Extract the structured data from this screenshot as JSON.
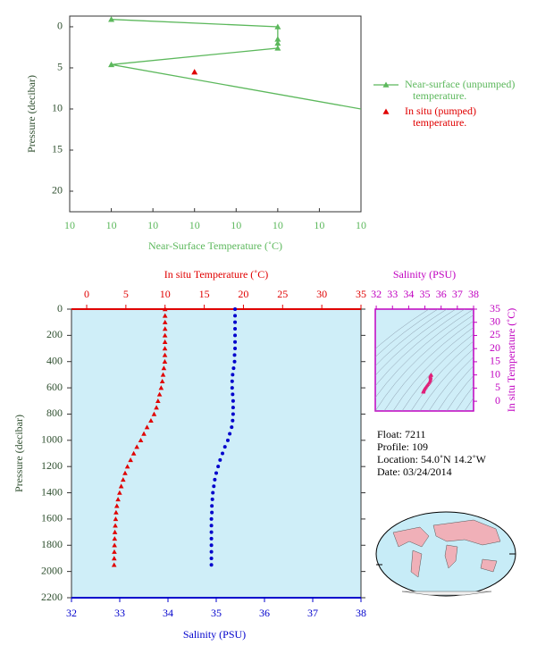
{
  "chart_data": [
    {
      "type": "line",
      "xlabel": "Near-Surface Temperature (˚C)",
      "ylabel": "Pressure (decibar)",
      "xlim": [
        9.7,
        10.4
      ],
      "ylim": [
        22.5,
        -1.3
      ],
      "xticks": [
        {
          "value": 9.7,
          "label": "10"
        },
        {
          "value": 9.8,
          "label": "10"
        },
        {
          "value": 9.9,
          "label": "10"
        },
        {
          "value": 10.0,
          "label": "10"
        },
        {
          "value": 10.1,
          "label": "10"
        },
        {
          "value": 10.2,
          "label": "10"
        },
        {
          "value": 10.3,
          "label": "10"
        },
        {
          "value": 10.4,
          "label": "10"
        }
      ],
      "yticks": [
        0,
        5,
        10,
        15,
        20
      ],
      "series": [
        {
          "name": "Near-surface (unpumped) temperature.",
          "color": "#5cb85c",
          "x": [
            9.8,
            10.2,
            10.2,
            10.2,
            10.2,
            9.8,
            10.4
          ],
          "values": [
            -0.9,
            0,
            1.5,
            2.0,
            2.6,
            4.6,
            10
          ]
        },
        {
          "name": "In situ (pumped) temperature.",
          "color": "#e00000",
          "x": [
            10.0
          ],
          "values": [
            5.5
          ]
        }
      ]
    },
    {
      "type": "profile",
      "xlabel": "Salinity (PSU)",
      "x2label": "In situ Temperature (˚C)",
      "ylabel": "Pressure (decibar)",
      "xlim": [
        32,
        38
      ],
      "x2lim": [
        -1.94,
        35
      ],
      "ylim": [
        2200,
        0
      ],
      "xticks": [
        32,
        33,
        34,
        35,
        36,
        37,
        38
      ],
      "x2ticks": [
        0,
        5,
        10,
        15,
        20,
        25,
        30,
        35
      ],
      "yticks": [
        0,
        200,
        400,
        600,
        800,
        1000,
        1200,
        1400,
        1600,
        1800,
        2000,
        2200
      ],
      "y": [
        0,
        50,
        100,
        150,
        200,
        250,
        300,
        350,
        400,
        450,
        500,
        550,
        600,
        650,
        700,
        750,
        800,
        850,
        900,
        950,
        1000,
        1050,
        1100,
        1150,
        1200,
        1250,
        1300,
        1350,
        1400,
        1450,
        1500,
        1550,
        1600,
        1650,
        1700,
        1750,
        1800,
        1850,
        1900,
        1950
      ],
      "series": [
        {
          "name": "In situ Temperature",
          "color": "#e00000",
          "axis": "x2",
          "values": [
            10.0,
            10.0,
            10.0,
            10.0,
            9.99,
            9.99,
            9.98,
            9.98,
            9.97,
            9.85,
            9.75,
            9.65,
            9.5,
            9.3,
            9.1,
            8.9,
            8.6,
            8.2,
            7.7,
            7.3,
            6.9,
            6.4,
            6.0,
            5.6,
            5.2,
            4.9,
            4.65,
            4.4,
            4.2,
            4.0,
            3.85,
            3.75,
            3.7,
            3.65,
            3.6,
            3.57,
            3.55,
            3.53,
            3.51,
            3.5
          ]
        },
        {
          "name": "Salinity",
          "color": "#0000cc",
          "values": [
            35.39,
            35.39,
            35.39,
            35.39,
            35.39,
            35.39,
            35.39,
            35.38,
            35.38,
            35.36,
            35.34,
            35.33,
            35.33,
            35.34,
            35.35,
            35.35,
            35.35,
            35.34,
            35.32,
            35.28,
            35.24,
            35.18,
            35.13,
            35.08,
            35.04,
            35.0,
            34.97,
            34.95,
            34.93,
            34.92,
            34.91,
            34.91,
            34.9,
            34.9,
            34.9,
            34.9,
            34.9,
            34.9,
            34.9,
            34.9
          ]
        }
      ]
    },
    {
      "type": "ts",
      "xlabel": "Salinity (PSU)",
      "ylabel": "In situ Temperature (˚C)",
      "color": "#e0207a",
      "xlim": [
        31.94,
        38
      ],
      "ylim": [
        -3.7,
        35
      ],
      "xticks": [
        32,
        33,
        34,
        35,
        36,
        37,
        38
      ],
      "yticks": [
        0,
        5,
        10,
        15,
        20,
        25,
        30,
        35
      ]
    }
  ],
  "float_info": {
    "float": "Float:  7211",
    "profile": "Profile:  109",
    "location": "Location:  54.0˚N  14.2˚W",
    "date": "Date:  03/24/2014"
  }
}
